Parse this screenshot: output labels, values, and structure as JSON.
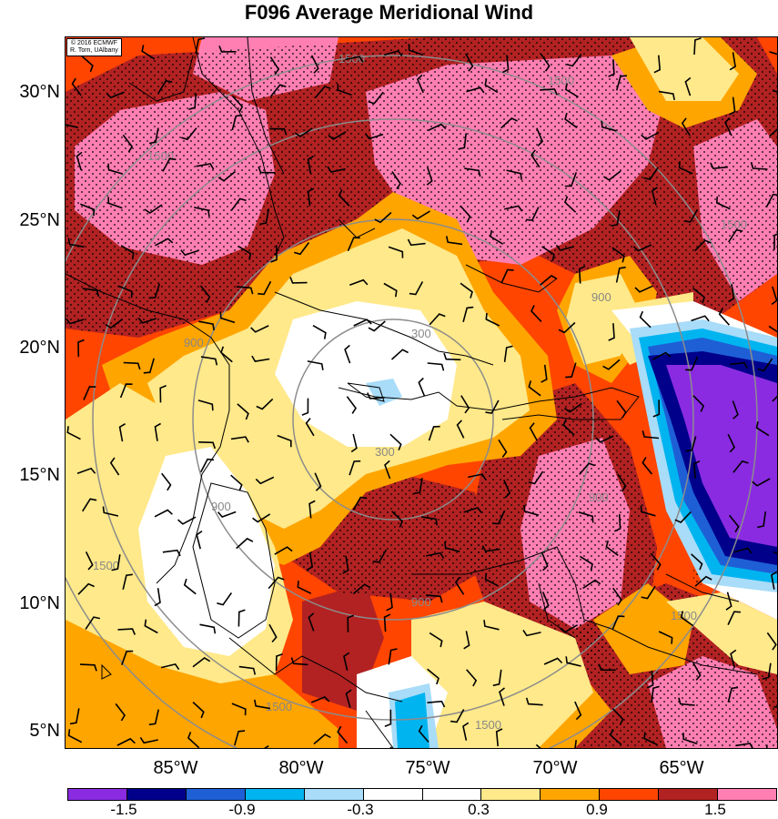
{
  "title": "F096 Average Meridional Wind",
  "credit": [
    "© 2016 ECMWF",
    "R. Torn, UAlbany"
  ],
  "lat_labels": [
    "30°N",
    "25°N",
    "20°N",
    "15°N",
    "10°N",
    "5°N"
  ],
  "lon_labels": [
    "85°W",
    "80°W",
    "75°W",
    "70°W",
    "65°W"
  ],
  "colorbar": {
    "colors": [
      "#8a2be2",
      "#00008b",
      "#1e5fd6",
      "#00b4f0",
      "#a8dcf8",
      "#ffffff",
      "#ffffff",
      "#ffe98a",
      "#ffa500",
      "#ff4500",
      "#b22222",
      "#ff7fb3"
    ],
    "labels": [
      "-1.5",
      "-0.9",
      "-0.3",
      "0.3",
      "0.9",
      "1.5"
    ]
  },
  "range_rings": [
    "300",
    "900",
    "1500"
  ],
  "palette": {
    "pink": "#ff7fb3",
    "darkred": "#b22222",
    "orangered": "#ff4500",
    "orange": "#ffa500",
    "yellow": "#ffe98a",
    "white": "#ffffff",
    "lightblue": "#a8dcf8",
    "cyan": "#00b4f0",
    "blue": "#1e5fd6",
    "navy": "#00008b",
    "purple": "#8a2be2"
  }
}
